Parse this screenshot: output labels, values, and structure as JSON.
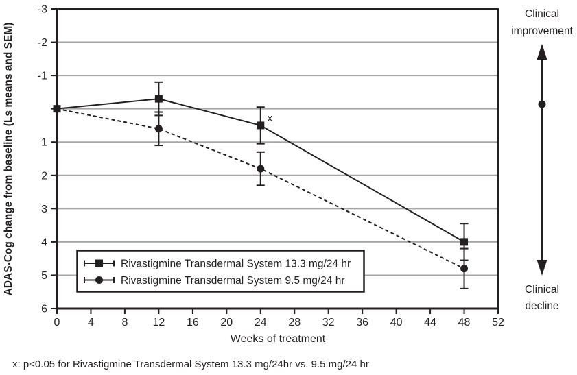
{
  "colors": {
    "ink": "#231f20",
    "grid": "#a6a6a6",
    "background": "#ffffff"
  },
  "chart_data": {
    "type": "line",
    "title": "",
    "xlabel": "Weeks of treatment",
    "ylabel": "ADAS-Cog change from baseline (Ls means and SEM)",
    "x": [
      0,
      12,
      24,
      48
    ],
    "series": [
      {
        "name": "Rivastigmine Transdermal System 13.3 mg/24 hr",
        "marker": "square",
        "line_style": "solid",
        "values": [
          0,
          -0.3,
          0.5,
          4.0
        ],
        "sem": [
          0,
          0.5,
          0.55,
          0.55
        ]
      },
      {
        "name": "Rivastigmine Transdermal System 9.5 mg/24 hr",
        "marker": "circle",
        "line_style": "dashed",
        "values": [
          0,
          0.6,
          1.8,
          4.8
        ],
        "sem": [
          0,
          0.5,
          0.5,
          0.6
        ]
      }
    ],
    "x_ticks": [
      0,
      4,
      8,
      12,
      16,
      20,
      24,
      28,
      32,
      36,
      40,
      44,
      48,
      52
    ],
    "y_ticks": [
      -3,
      -2,
      -1,
      0,
      1,
      2,
      3,
      4,
      5,
      6
    ],
    "y_tick_labels": [
      "-3",
      "-2",
      "-1",
      "",
      "1",
      "2",
      "3",
      "4",
      "5",
      "6"
    ],
    "xlim": [
      0,
      52
    ],
    "ylim_top": -3,
    "ylim_bottom": 6,
    "grid": true,
    "legend_position": "inside-bottom-left",
    "annotations": [
      {
        "text": "x",
        "week": 25.1,
        "value": 0.27
      }
    ]
  },
  "right_annotation": {
    "top_line1": "Clinical",
    "top_line2": "improvement",
    "bottom_line1": "Clinical",
    "bottom_line2": "decline"
  },
  "footnote": "x: p<0.05 for Rivastigmine Transdermal System 13.3 mg/24hr vs. 9.5 mg/24 hr"
}
